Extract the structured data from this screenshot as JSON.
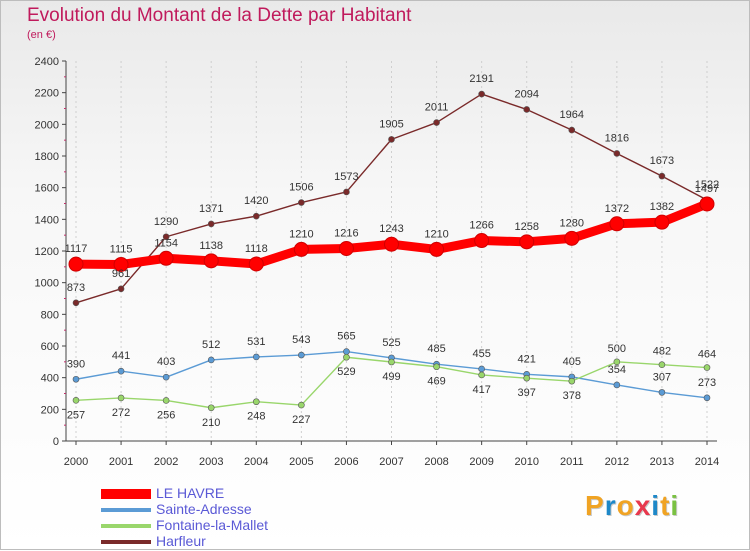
{
  "header": {
    "title": "Evolution du Montant de la Dette par Habitant",
    "subtitle": "(en €)"
  },
  "logo": {
    "text": "Proxiti",
    "letters": [
      "P",
      "r",
      "o",
      "x",
      "i",
      "t",
      "i"
    ],
    "colors": [
      "#f0a323",
      "#1e88c8",
      "#f0a323",
      "#e8384d",
      "#1e88c8",
      "#f0a323",
      "#7ac142"
    ]
  },
  "chart_data": {
    "type": "line",
    "title": "Evolution du Montant de la Dette par Habitant",
    "ylabel": "(en €)",
    "xlabel": "",
    "x": [
      "2000",
      "2001",
      "2002",
      "2003",
      "2004",
      "2005",
      "2006",
      "2007",
      "2008",
      "2009",
      "2010",
      "2011",
      "2012",
      "2013",
      "2014"
    ],
    "ylim": [
      0,
      2400
    ],
    "yticks": [
      "0",
      "200",
      "400",
      "600",
      "800",
      "1000",
      "1200",
      "1400",
      "1600",
      "1800",
      "2000",
      "2200",
      "2400"
    ],
    "grid": "vertical dashed",
    "legend_position": "bottom-left",
    "series": [
      {
        "name": "LE HAVRE",
        "color": "#ff0000",
        "values": [
          1117,
          1115,
          1154,
          1138,
          1118,
          1210,
          1216,
          1243,
          1210,
          1266,
          1258,
          1280,
          1372,
          1382,
          1497
        ],
        "labels": [
          "1117",
          "1115",
          "1154",
          "1138",
          "1118",
          "1210",
          "1216",
          "1243",
          "1210",
          "1266",
          "1258",
          "1280",
          "1372",
          "1382",
          "1497"
        ]
      },
      {
        "name": "Sainte-Adresse",
        "color": "#5b9bd5",
        "values": [
          390,
          441,
          403,
          512,
          531,
          543,
          565,
          525,
          485,
          455,
          421,
          405,
          354,
          307,
          273
        ],
        "labels": [
          "390",
          "441",
          "403",
          "512",
          "531",
          "543",
          "565",
          "525",
          "485",
          "455",
          "421",
          "405",
          "354",
          "307",
          "273"
        ]
      },
      {
        "name": "Fontaine-la-Mallet",
        "color": "#99d66b",
        "values": [
          257,
          272,
          256,
          210,
          248,
          227,
          529,
          499,
          469,
          417,
          397,
          378,
          500,
          482,
          464
        ],
        "labels": [
          "257",
          "272",
          "256",
          "210",
          "248",
          "227",
          "529",
          "499",
          "469",
          "417",
          "397",
          "378",
          "500",
          "482",
          "464"
        ]
      },
      {
        "name": "Harfleur",
        "color": "#7a2a2a",
        "values": [
          873,
          961,
          1290,
          1371,
          1420,
          1506,
          1573,
          1905,
          2011,
          2191,
          2094,
          1964,
          1816,
          1673,
          1522
        ],
        "labels": [
          "873",
          "961",
          "1290",
          "1371",
          "1420",
          "1506",
          "1573",
          "1905",
          "2011",
          "2191",
          "2094",
          "1964",
          "1816",
          "1673",
          "1522"
        ]
      }
    ]
  }
}
